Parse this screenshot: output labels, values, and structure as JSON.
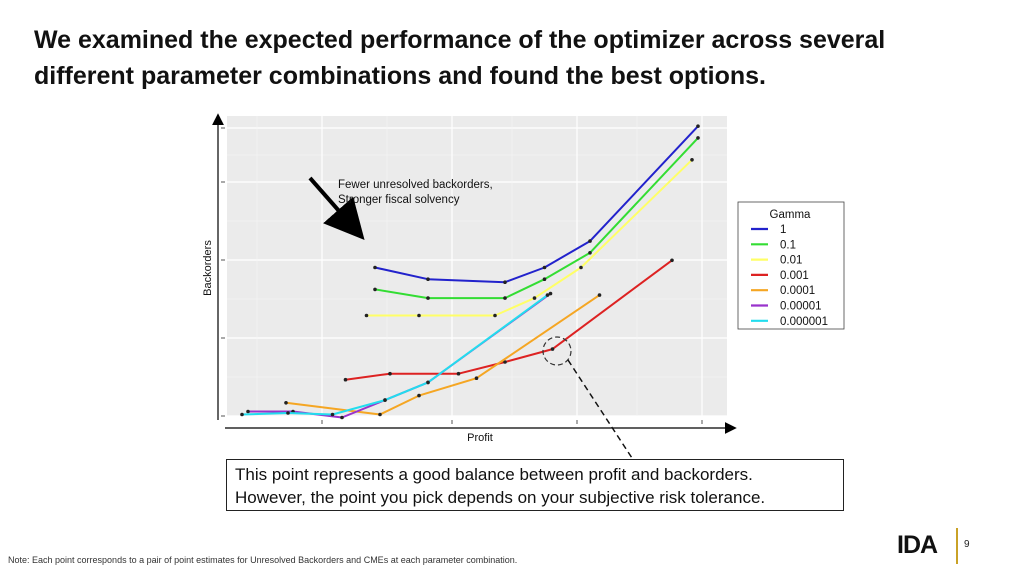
{
  "slide": {
    "title_line1": "We examined the expected performance of the optimizer across several",
    "title_line2": "different parameter combinations and found the best options.",
    "callout_line1": "This point represents a good balance between profit and backorders.",
    "callout_line2": "However, the point you pick depends on your subjective risk tolerance.",
    "note": "Note: Each point corresponds to a pair of point estimates for Unresolved Backorders and CMEs at each parameter combination.",
    "logo_text": "IDA",
    "page_number": "9"
  },
  "chart_data": {
    "type": "line",
    "xlabel": "Profit",
    "ylabel": "Backorders",
    "xlim": [
      0,
      100
    ],
    "ylim": [
      0,
      100
    ],
    "grid": true,
    "legend_title": "Gamma",
    "legend_position": "right",
    "annotation_arrow_text_line1": "Fewer unresolved backorders,",
    "annotation_arrow_text_line2": "Stronger fiscal solvency",
    "series": [
      {
        "name": "1",
        "color": "#2222cc",
        "x": [
          29.6,
          40.2,
          55.6,
          63.5,
          72.6,
          94.2
        ],
        "y": [
          49.5,
          45.6,
          44.6,
          49.5,
          58.3,
          96.6
        ]
      },
      {
        "name": "0.1",
        "color": "#33dd33",
        "x": [
          29.6,
          40.2,
          55.6,
          63.5,
          72.6,
          94.2
        ],
        "y": [
          42.2,
          39.3,
          39.3,
          45.6,
          54.4,
          92.7
        ]
      },
      {
        "name": "0.01",
        "color": "#ffff66",
        "x": [
          27.9,
          38.4,
          53.6,
          61.5,
          70.8,
          93.0
        ],
        "y": [
          33.5,
          33.5,
          33.5,
          39.3,
          49.5,
          85.4
        ]
      },
      {
        "name": "0.001",
        "color": "#dd2222",
        "x": [
          23.7,
          32.6,
          46.3,
          55.6,
          65.1,
          89.0
        ],
        "y": [
          12.1,
          14.1,
          14.1,
          18.0,
          22.3,
          51.9
        ]
      },
      {
        "name": "0.0001",
        "color": "#f5a623",
        "x": [
          11.8,
          30.6,
          38.4,
          49.9,
          74.5
        ],
        "y": [
          4.4,
          0.5,
          6.8,
          12.6,
          40.3
        ]
      },
      {
        "name": "0.00001",
        "color": "#9933cc",
        "x": [
          4.2,
          13.2,
          23.0,
          31.6,
          40.2,
          64.7
        ],
        "y": [
          1.5,
          1.5,
          -0.5,
          5.3,
          11.2,
          40.8
        ]
      },
      {
        "name": "0.000001",
        "color": "#22ddee",
        "x": [
          3.0,
          12.2,
          21.1,
          31.6,
          40.2,
          64.1
        ],
        "y": [
          0.5,
          1.0,
          0.5,
          5.3,
          11.2,
          40.3
        ]
      }
    ]
  }
}
